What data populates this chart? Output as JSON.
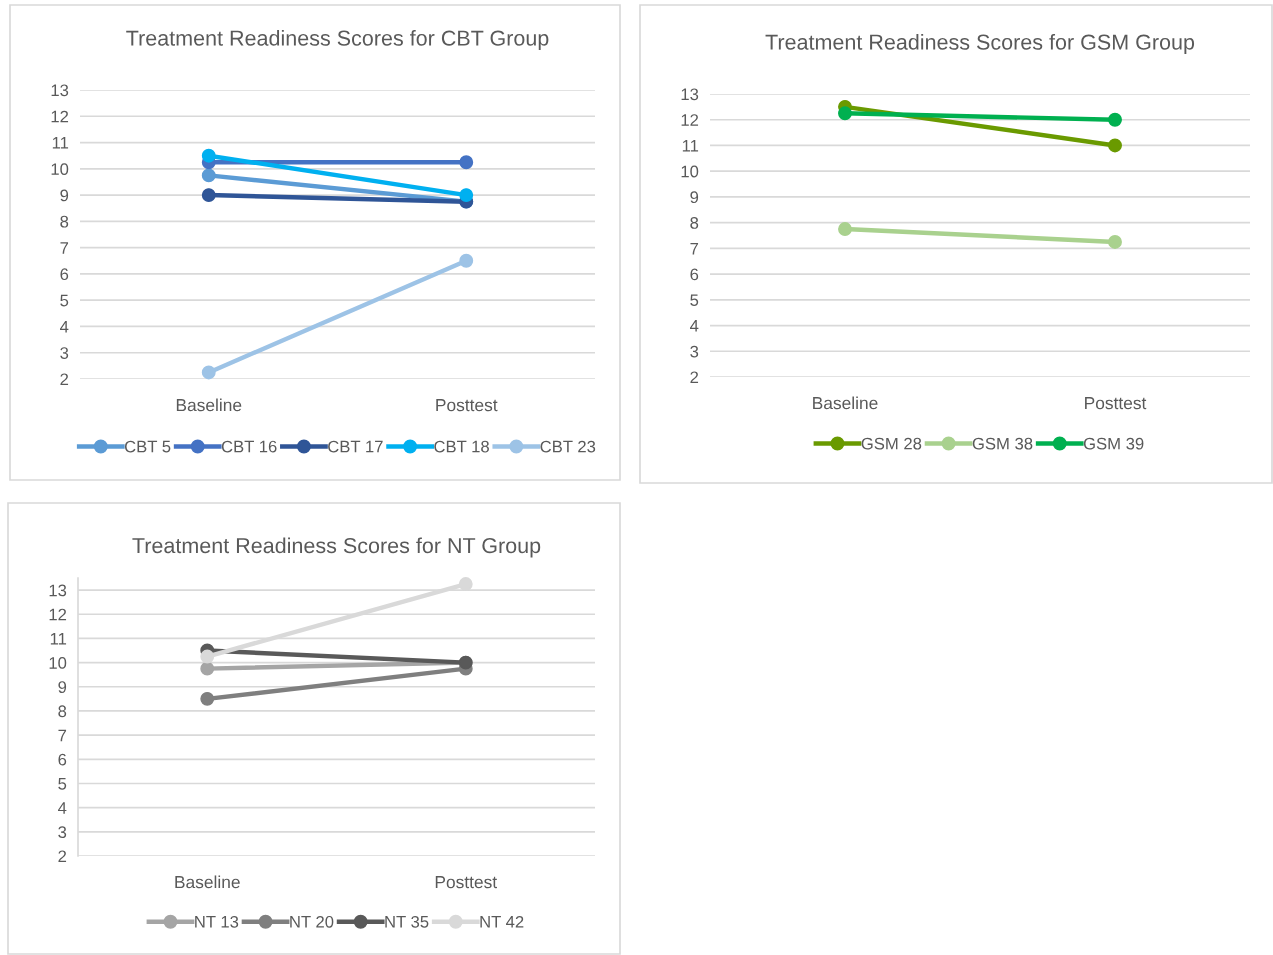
{
  "chart_data": [
    {
      "type": "line",
      "title": "Treatment Readiness Scores for CBT Group",
      "categories": [
        "Baseline",
        "Posttest"
      ],
      "ylim": [
        2,
        13
      ],
      "yticks": [
        2,
        3,
        4,
        5,
        6,
        7,
        8,
        9,
        10,
        11,
        12,
        13
      ],
      "grid": "y",
      "legend": "bottom",
      "marker": "circle",
      "series": [
        {
          "name": "CBT 5",
          "color": "#5b9bd5",
          "values": [
            9.75,
            8.75
          ]
        },
        {
          "name": "CBT 16",
          "color": "#4472c4",
          "values": [
            10.25,
            10.25
          ]
        },
        {
          "name": "CBT 17",
          "color": "#2f5597",
          "values": [
            9,
            8.75
          ]
        },
        {
          "name": "CBT 18",
          "color": "#00b0f0",
          "values": [
            10.5,
            9
          ]
        },
        {
          "name": "CBT 23",
          "color": "#9dc3e6",
          "values": [
            2.25,
            6.5
          ]
        }
      ]
    },
    {
      "type": "line",
      "title": "Treatment Readiness Scores for GSM Group",
      "categories": [
        "Baseline",
        "Posttest"
      ],
      "ylim": [
        2,
        13
      ],
      "yticks": [
        2,
        3,
        4,
        5,
        6,
        7,
        8,
        9,
        10,
        11,
        12,
        13
      ],
      "grid": "y",
      "legend": "bottom",
      "marker": "circle",
      "series": [
        {
          "name": "GSM 28",
          "color": "#6a9a00",
          "values": [
            12.5,
            11
          ]
        },
        {
          "name": "GSM 38",
          "color": "#a9d18e",
          "values": [
            7.75,
            7.25
          ]
        },
        {
          "name": "GSM 39",
          "color": "#00b050",
          "values": [
            12.25,
            12
          ]
        }
      ]
    },
    {
      "type": "line",
      "title": "Treatment Readiness Scores for NT Group",
      "categories": [
        "Baseline",
        "Posttest"
      ],
      "ylim": [
        2,
        13.5
      ],
      "yticks": [
        2,
        3,
        4,
        5,
        6,
        7,
        8,
        9,
        10,
        11,
        12,
        13
      ],
      "grid": "y",
      "legend": "bottom",
      "marker": "circle",
      "series": [
        {
          "name": "NT 13",
          "color": "#a5a5a5",
          "values": [
            9.75,
            10
          ]
        },
        {
          "name": "NT 20",
          "color": "#7f7f7f",
          "values": [
            8.5,
            9.75
          ]
        },
        {
          "name": "NT 35",
          "color": "#595959",
          "values": [
            10.5,
            10
          ]
        },
        {
          "name": "NT 42",
          "color": "#d9d9d9",
          "values": [
            10.25,
            13.25
          ]
        }
      ]
    }
  ]
}
